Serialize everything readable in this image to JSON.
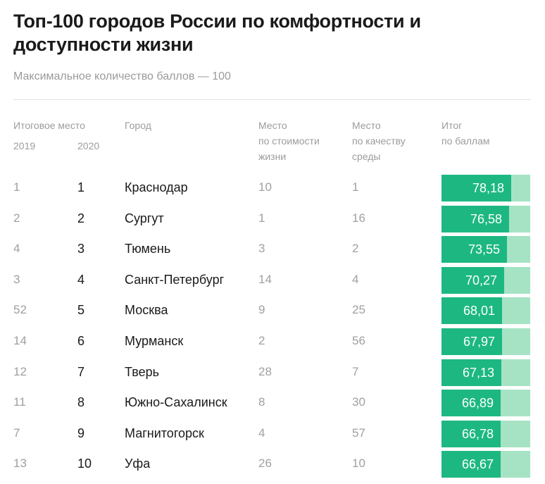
{
  "title": "Топ-100 городов России по комфортности и доступности жизни",
  "subtitle": "Максимальное количество баллов — 100",
  "colors": {
    "bar_fill": "#1db882",
    "bar_track": "#a6e3c4"
  },
  "headers": {
    "rank": "Итоговое место",
    "year_2019": "2019",
    "year_2020": "2020",
    "city": "Город",
    "cost_line1": "Место",
    "cost_line2": "по стоимости",
    "cost_line3": "жизни",
    "quality_line1": "Место",
    "quality_line2": "по качеству",
    "quality_line3": "среды",
    "score_line1": "Итог",
    "score_line2": "по баллам"
  },
  "chart_data": {
    "type": "table",
    "max_score": 100,
    "columns": [
      "2019",
      "2020",
      "Город",
      "Место по стоимости жизни",
      "Место по качеству среды",
      "Итог по баллам"
    ],
    "rows": [
      {
        "rank_2019": "1",
        "rank_2020": "1",
        "city": "Краснодар",
        "cost": "10",
        "quality": "1",
        "score_label": "78,18",
        "score": 78.18
      },
      {
        "rank_2019": "2",
        "rank_2020": "2",
        "city": "Сургут",
        "cost": "1",
        "quality": "16",
        "score_label": "76,58",
        "score": 76.58
      },
      {
        "rank_2019": "4",
        "rank_2020": "3",
        "city": "Тюмень",
        "cost": "3",
        "quality": "2",
        "score_label": "73,55",
        "score": 73.55
      },
      {
        "rank_2019": "3",
        "rank_2020": "4",
        "city": "Санкт-Петербург",
        "cost": "14",
        "quality": "4",
        "score_label": "70,27",
        "score": 70.27
      },
      {
        "rank_2019": "52",
        "rank_2020": "5",
        "city": "Москва",
        "cost": "9",
        "quality": "25",
        "score_label": "68,01",
        "score": 68.01
      },
      {
        "rank_2019": "14",
        "rank_2020": "6",
        "city": "Мурманск",
        "cost": "2",
        "quality": "56",
        "score_label": "67,97",
        "score": 67.97
      },
      {
        "rank_2019": "12",
        "rank_2020": "7",
        "city": "Тверь",
        "cost": "28",
        "quality": "7",
        "score_label": "67,13",
        "score": 67.13
      },
      {
        "rank_2019": "11",
        "rank_2020": "8",
        "city": "Южно-Сахалинск",
        "cost": "8",
        "quality": "30",
        "score_label": "66,89",
        "score": 66.89
      },
      {
        "rank_2019": "7",
        "rank_2020": "9",
        "city": "Магнитогорск",
        "cost": "4",
        "quality": "57",
        "score_label": "66,78",
        "score": 66.78
      },
      {
        "rank_2019": "13",
        "rank_2020": "10",
        "city": "Уфа",
        "cost": "26",
        "quality": "10",
        "score_label": "66,67",
        "score": 66.67
      }
    ]
  }
}
